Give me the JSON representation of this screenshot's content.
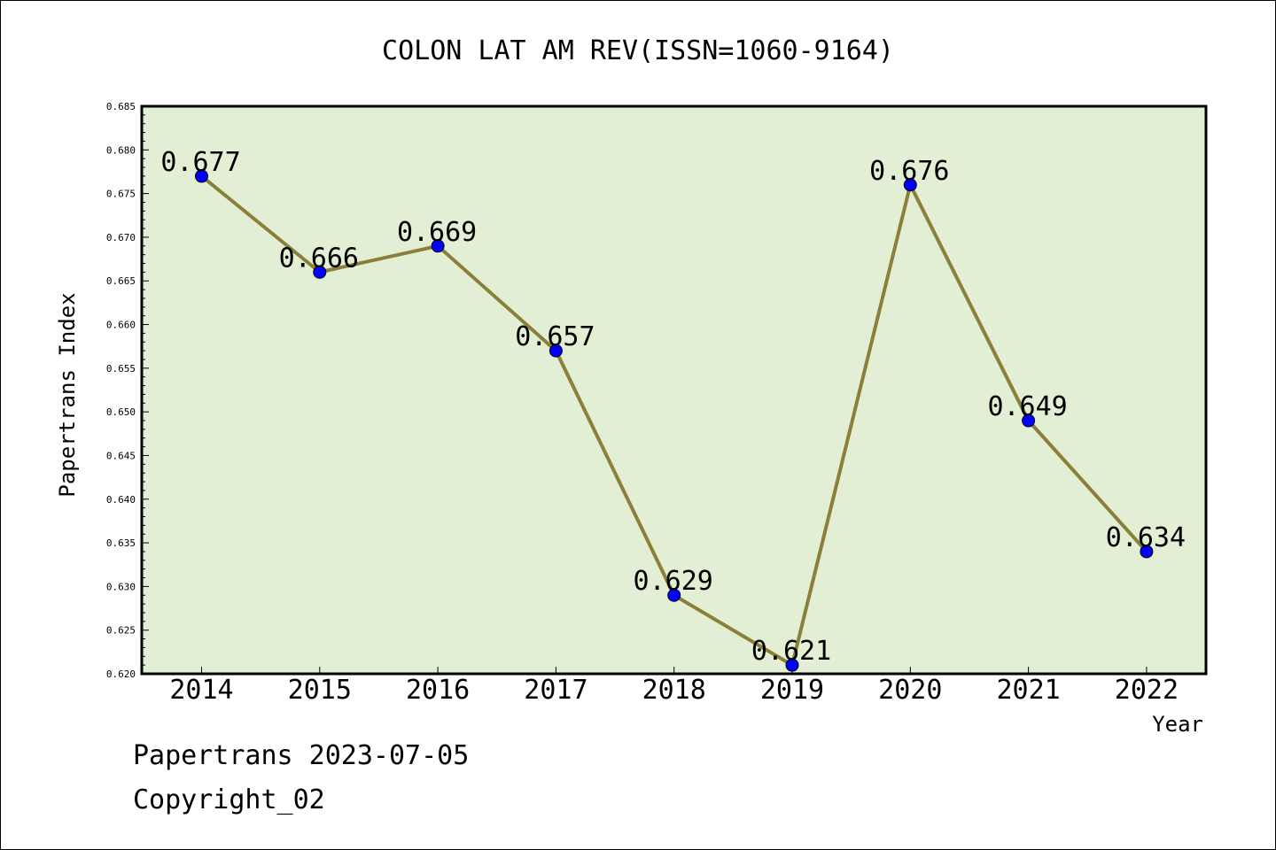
{
  "chart_data": {
    "type": "line",
    "title": "COLON LAT AM REV(ISSN=1060-9164)",
    "xlabel": "Year",
    "ylabel": "Papertrans Index",
    "categories": [
      "2014",
      "2015",
      "2016",
      "2017",
      "2018",
      "2019",
      "2020",
      "2021",
      "2022"
    ],
    "series": [
      {
        "values": [
          0.677,
          0.666,
          0.669,
          0.657,
          0.629,
          0.621,
          0.676,
          0.649,
          0.634
        ]
      }
    ],
    "data_labels": [
      "0.677",
      "0.666",
      "0.669",
      "0.657",
      "0.629",
      "0.621",
      "0.676",
      "0.649",
      "0.634"
    ],
    "ylim": [
      0.62,
      0.685
    ],
    "yticks": [
      "0.620",
      "0.625",
      "0.630",
      "0.635",
      "0.640",
      "0.645",
      "0.650",
      "0.655",
      "0.660",
      "0.665",
      "0.670",
      "0.675",
      "0.680",
      "0.685"
    ],
    "grid": false,
    "colors": {
      "plot_background": "#e2efd4",
      "line": "#8b7f3a",
      "marker": "#0000ff"
    }
  },
  "footer": {
    "date_text": "Papertrans 2023-07-05",
    "copyright_text": "Copyright_02"
  }
}
